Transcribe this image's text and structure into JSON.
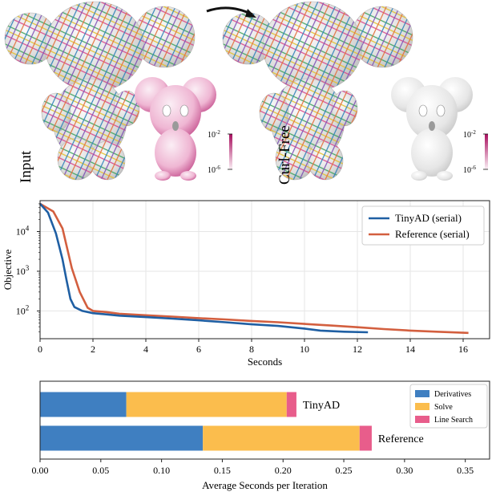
{
  "top_panel": {
    "left_label": "Input",
    "right_label": "Curl-Free",
    "colorbar_top": "10",
    "colorbar_top_exp": "-2",
    "colorbar_bottom": "10",
    "colorbar_bottom_exp": "-6",
    "colors": {
      "error_low": "#f6eef3",
      "error_high": "#c2187a",
      "mesh": "#d9d9d9"
    }
  },
  "chart_data": [
    {
      "type": "line",
      "xlabel": "Seconds",
      "ylabel": "Objective",
      "xlim": [
        0,
        17
      ],
      "ylim": [
        20,
        60000
      ],
      "yscale": "log",
      "xticks": [
        "0",
        "2",
        "4",
        "6",
        "8",
        "10",
        "12",
        "14",
        "16"
      ],
      "yticks": [
        {
          "base": "10",
          "exp": "2"
        },
        {
          "base": "10",
          "exp": "3"
        },
        {
          "base": "10",
          "exp": "4"
        }
      ],
      "grid": true,
      "legend_position": "top-right",
      "series": [
        {
          "name": "TinyAD (serial)",
          "color": "#1f5fa3",
          "x": [
            0,
            0.3,
            0.6,
            0.85,
            1.0,
            1.15,
            1.3,
            1.6,
            2.0,
            2.5,
            3.0,
            4.0,
            5.0,
            6.0,
            7.0,
            8.0,
            9.0,
            10.0,
            10.6,
            11.0,
            11.5,
            12.4
          ],
          "y": [
            50000,
            30000,
            9000,
            2000,
            600,
            200,
            125,
            100,
            88,
            82,
            76,
            70,
            64,
            58,
            52,
            46,
            42,
            36,
            32,
            31,
            30,
            29
          ]
        },
        {
          "name": "Reference (serial)",
          "color": "#d35f3f",
          "x": [
            0,
            0.5,
            0.85,
            1.2,
            1.5,
            1.8,
            2.0,
            2.5,
            3.0,
            4.0,
            5.0,
            6.0,
            7.0,
            8.0,
            9.0,
            10.0,
            11.0,
            12.0,
            13.0,
            14.0,
            15.0,
            16.2
          ],
          "y": [
            50000,
            32000,
            12000,
            1200,
            300,
            120,
            100,
            94,
            85,
            78,
            72,
            66,
            61,
            56,
            52,
            47,
            43,
            39,
            35,
            32,
            30,
            28
          ]
        }
      ]
    },
    {
      "type": "bar",
      "orientation": "horizontal",
      "stacked": true,
      "xlabel": "Average Seconds per Iteration",
      "xlim": [
        0,
        0.37
      ],
      "xticks": [
        "0.00",
        "0.05",
        "0.10",
        "0.15",
        "0.20",
        "0.25",
        "0.30",
        "0.35"
      ],
      "categories": [
        "TinyAD",
        "Reference"
      ],
      "legend_position": "top-right",
      "series": [
        {
          "name": "Derivatives",
          "color": "#3f7fc1",
          "values": [
            0.071,
            0.134
          ]
        },
        {
          "name": "Solve",
          "color": "#fbbd4d",
          "values": [
            0.132,
            0.129
          ]
        },
        {
          "name": "Line Search",
          "color": "#e85d8b",
          "values": [
            0.008,
            0.01
          ]
        }
      ]
    }
  ]
}
